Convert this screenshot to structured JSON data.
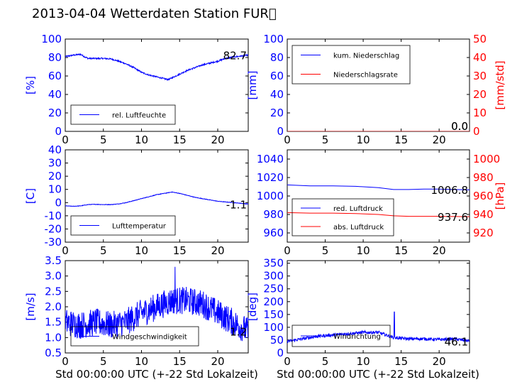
{
  "figure": {
    "title": "2013-04-04 Wetterdaten Station FUR\u0000",
    "xlabel": "Std 00:00:00 UTC (+-22 Std Lokalzeit)"
  },
  "colors": {
    "primary": "#0000ff",
    "secondary": "#ff0000",
    "axis": "#000000"
  },
  "chart_data": [
    {
      "id": "humidity",
      "type": "line",
      "x_range": [
        0,
        24
      ],
      "x_ticks": [
        0,
        5,
        10,
        15,
        20
      ],
      "ylim": [
        0,
        100
      ],
      "y_ticks": [
        0,
        20,
        40,
        60,
        80,
        100
      ],
      "ylabel": "[%]",
      "legend_position": "lower-left",
      "current_value": "82.7",
      "series": [
        {
          "name": "rel. Luftfeuchte",
          "color": "#0000ff",
          "x": [
            0,
            1,
            2,
            2.5,
            3,
            4,
            5,
            6,
            7,
            8,
            9,
            10,
            11,
            12,
            13,
            13.5,
            14,
            15,
            16,
            17,
            18,
            19,
            20,
            21,
            22,
            23,
            24
          ],
          "y": [
            81,
            82.5,
            83.5,
            81,
            79,
            79,
            79,
            78.5,
            76,
            73,
            69,
            64,
            61,
            59,
            57,
            56,
            58,
            62,
            66,
            69,
            72,
            74,
            76,
            79,
            80.5,
            81.5,
            82.7
          ],
          "noise": 1.5
        }
      ]
    },
    {
      "id": "precipitation",
      "type": "line",
      "x_range": [
        0,
        24
      ],
      "x_ticks": [
        0,
        5,
        10,
        15,
        20
      ],
      "ylim": [
        0,
        100
      ],
      "y_ticks": [
        0,
        20,
        40,
        60,
        80,
        100
      ],
      "ylabel": "[mm]",
      "ylim_right": [
        0,
        50
      ],
      "y_ticks_right": [
        0,
        10,
        20,
        30,
        40,
        50
      ],
      "ylabel_right": "[mm/std]",
      "legend_position": "upper-left",
      "current_value": "0.0",
      "current_value_right": "0.0",
      "series": [
        {
          "name": "kum. Niederschlag",
          "color": "#0000ff",
          "axis": "left",
          "x": [
            0,
            24
          ],
          "y": [
            0,
            0
          ]
        },
        {
          "name": "Niederschlagsrate",
          "color": "#ff0000",
          "axis": "right",
          "x": [
            0,
            24
          ],
          "y": [
            0,
            0
          ]
        }
      ]
    },
    {
      "id": "temperature",
      "type": "line",
      "x_range": [
        0,
        24
      ],
      "x_ticks": [
        0,
        5,
        10,
        15,
        20
      ],
      "ylim": [
        -30,
        40
      ],
      "y_ticks": [
        -30,
        -20,
        -10,
        0,
        10,
        20,
        30,
        40
      ],
      "ylabel": "[C]",
      "legend_position": "lower-left",
      "current_value": "-1.1",
      "series": [
        {
          "name": "Lufttemperatur",
          "color": "#0000ff",
          "x": [
            0,
            1,
            2,
            3,
            4,
            5,
            6,
            7,
            8,
            9,
            10,
            11,
            12,
            13,
            14,
            15,
            16,
            17,
            18,
            19,
            20,
            21,
            22,
            23,
            24
          ],
          "y": [
            -2.5,
            -2.8,
            -2.5,
            -1.5,
            -1.3,
            -1.5,
            -1.5,
            -1,
            0,
            1.5,
            3,
            4.5,
            6,
            7,
            8,
            7,
            5.5,
            4,
            3,
            2,
            1,
            0.5,
            0,
            -0.5,
            -1.1
          ],
          "noise": 0.4
        }
      ]
    },
    {
      "id": "pressure",
      "type": "line",
      "x_range": [
        0,
        24
      ],
      "x_ticks": [
        0,
        5,
        10,
        15,
        20
      ],
      "ylim": [
        950,
        1050
      ],
      "y_ticks": [
        960,
        980,
        1000,
        1020,
        1040
      ],
      "ylabel": "",
      "ylim_right": [
        910,
        1010
      ],
      "y_ticks_right": [
        920,
        940,
        960,
        980,
        1000
      ],
      "ylabel_right": "[hPa]",
      "legend_position": "lower-left",
      "current_value": "1006.8",
      "current_value_right": "937.6",
      "series": [
        {
          "name": "red. Luftdruck",
          "color": "#0000ff",
          "axis": "left",
          "x": [
            0,
            3,
            6,
            9,
            12,
            14,
            16,
            18,
            20,
            22,
            24
          ],
          "y": [
            1012,
            1011,
            1011,
            1010.5,
            1009,
            1007,
            1007,
            1007.5,
            1007.5,
            1007,
            1006.8
          ]
        },
        {
          "name": "abs. Luftdruck",
          "color": "#ff0000",
          "axis": "right",
          "x": [
            0,
            3,
            6,
            9,
            12,
            14,
            16,
            18,
            20,
            22,
            24
          ],
          "y": [
            942,
            941.5,
            941.5,
            941,
            940,
            938.5,
            938,
            938,
            938,
            937.8,
            937.6
          ]
        }
      ]
    },
    {
      "id": "windspeed",
      "type": "line",
      "x_range": [
        0,
        24
      ],
      "x_ticks": [
        0,
        5,
        10,
        15,
        20
      ],
      "ylim": [
        0.5,
        3.5
      ],
      "y_ticks": [
        0.5,
        1.0,
        1.5,
        2.0,
        2.5,
        3.0,
        3.5
      ],
      "ylabel": "[m/s]",
      "legend_position": "lower-left",
      "current_value": "1.2",
      "series": [
        {
          "name": "Windgeschwindigkeit",
          "color": "#0000ff",
          "x": [
            0,
            2,
            4,
            6,
            8,
            10,
            12,
            14,
            16,
            18,
            20,
            22,
            24
          ],
          "y": [
            1.5,
            1.4,
            1.5,
            1.4,
            1.5,
            1.8,
            2.0,
            2.2,
            2.2,
            2.1,
            1.8,
            1.5,
            1.2
          ],
          "noise": 0.9,
          "peak": [
            14.4,
            3.3
          ]
        }
      ]
    },
    {
      "id": "winddirection",
      "type": "line",
      "x_range": [
        0,
        24
      ],
      "x_ticks": [
        0,
        5,
        10,
        15,
        20
      ],
      "ylim": [
        0,
        360
      ],
      "y_ticks": [
        0,
        50,
        100,
        150,
        200,
        250,
        300,
        350
      ],
      "ylabel": "[deg]",
      "legend_position": "lower-left",
      "current_value": "46.1",
      "series": [
        {
          "name": "Windrichtung",
          "color": "#0000ff",
          "x": [
            0,
            2,
            4,
            6,
            8,
            10,
            12,
            14,
            16,
            18,
            20,
            22,
            24
          ],
          "y": [
            45,
            55,
            65,
            70,
            75,
            80,
            80,
            60,
            55,
            55,
            52,
            55,
            46.1
          ],
          "noise": 12,
          "peak": [
            14.1,
            160
          ]
        }
      ]
    }
  ]
}
